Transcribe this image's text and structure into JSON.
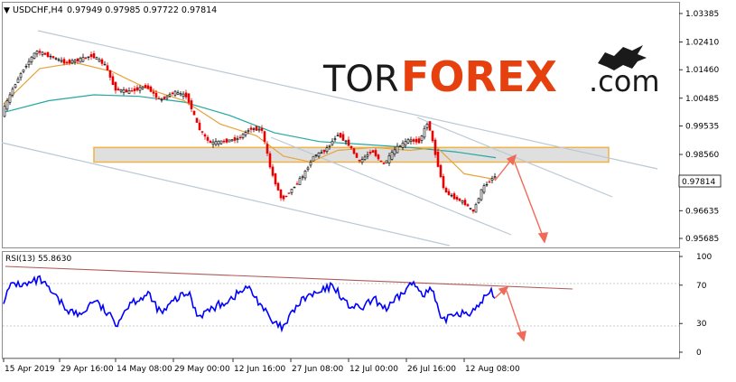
{
  "header": {
    "title": "USDCHF,H4",
    "ohlc": "0.97949 0.97985 0.97722 0.97814"
  },
  "logo": {
    "part1": "TOR",
    "part2": "FOREX",
    "part3": ".com"
  },
  "rsi": {
    "label": "RSI(13) 55.8630"
  },
  "colors": {
    "bull": "#000000",
    "bear": "#e60000",
    "ma_fast": "#e8a23a",
    "ma_slow": "#22a8a0",
    "channel": "#b9c9d6",
    "zone_fill": "#d9d9d9",
    "zone_border": "#f0b347",
    "arrow": "#f06a5a",
    "rsi_line": "#0000ff",
    "rsi_trend": "#b05a5a",
    "logo_dark": "#1a1a1a",
    "logo_accent": "#e6400f"
  },
  "chart_data": {
    "type": "candlestick",
    "symbol": "USDCHF",
    "timeframe": "H4",
    "ohlc_last": {
      "open": 0.97949,
      "high": 0.97985,
      "low": 0.97722,
      "close": 0.97814
    },
    "price_axis": {
      "ticks": [
        "1.03385",
        "1.02410",
        "1.01460",
        "1.00485",
        "0.99535",
        "0.98560",
        "0.97610",
        "0.96635",
        "0.95685"
      ],
      "ylim": [
        0.955,
        1.036
      ],
      "current_price": "0.97814"
    },
    "time_axis": {
      "ticks": [
        "15 Apr 2019",
        "29 Apr 16:00",
        "14 May 08:00",
        "29 May 00:00",
        "12 Jun 16:00",
        "27 Jun 08:00",
        "12 Jul 00:00",
        "26 Jul 16:00",
        "12 Aug 08:00"
      ]
    },
    "price_path": [
      [
        0,
        0.9995
      ],
      [
        12,
        1.008
      ],
      [
        22,
        1.014
      ],
      [
        38,
        1.021
      ],
      [
        55,
        1.019
      ],
      [
        70,
        1.017
      ],
      [
        85,
        1.018
      ],
      [
        100,
        1.0195
      ],
      [
        115,
        1.016
      ],
      [
        125,
        1.008
      ],
      [
        140,
        1.007
      ],
      [
        160,
        1.009
      ],
      [
        175,
        1.004
      ],
      [
        190,
        1.007
      ],
      [
        205,
        1.0055
      ],
      [
        218,
        0.9945
      ],
      [
        230,
        0.9895
      ],
      [
        245,
        0.99
      ],
      [
        262,
        0.991
      ],
      [
        275,
        0.9945
      ],
      [
        288,
        0.994
      ],
      [
        298,
        0.98
      ],
      [
        310,
        0.97
      ],
      [
        322,
        0.974
      ],
      [
        335,
        0.979
      ],
      [
        345,
        0.985
      ],
      [
        358,
        0.987
      ],
      [
        372,
        0.9925
      ],
      [
        384,
        0.989
      ],
      [
        396,
        0.983
      ],
      [
        410,
        0.987
      ],
      [
        422,
        0.982
      ],
      [
        436,
        0.9875
      ],
      [
        450,
        0.9905
      ],
      [
        462,
        0.99
      ],
      [
        472,
        0.997
      ],
      [
        482,
        0.983
      ],
      [
        490,
        0.973
      ],
      [
        500,
        0.971
      ],
      [
        512,
        0.969
      ],
      [
        522,
        0.966
      ],
      [
        532,
        0.974
      ],
      [
        545,
        0.9781
      ]
    ],
    "ma_fast_path": [
      [
        0,
        1.003
      ],
      [
        40,
        1.015
      ],
      [
        80,
        1.017
      ],
      [
        120,
        1.014
      ],
      [
        160,
        1.008
      ],
      [
        200,
        1.004
      ],
      [
        240,
        0.996
      ],
      [
        280,
        0.992
      ],
      [
        310,
        0.985
      ],
      [
        340,
        0.983
      ],
      [
        370,
        0.987
      ],
      [
        410,
        0.988
      ],
      [
        450,
        0.987
      ],
      [
        480,
        0.988
      ],
      [
        510,
        0.979
      ],
      [
        545,
        0.977
      ]
    ],
    "ma_slow_path": [
      [
        0,
        1.0
      ],
      [
        50,
        1.004
      ],
      [
        100,
        1.006
      ],
      [
        150,
        1.0055
      ],
      [
        200,
        1.0035
      ],
      [
        250,
        0.999
      ],
      [
        300,
        0.993
      ],
      [
        350,
        0.99
      ],
      [
        400,
        0.989
      ],
      [
        450,
        0.988
      ],
      [
        500,
        0.9865
      ],
      [
        545,
        0.9845
      ]
    ],
    "resistance_zone": {
      "from": 0.983,
      "to": 0.988
    },
    "rsi": {
      "period": 13,
      "value": 55.863,
      "ticks": [
        "100",
        "70",
        "30",
        "0"
      ],
      "path": [
        [
          0,
          55
        ],
        [
          10,
          72
        ],
        [
          25,
          70
        ],
        [
          40,
          76
        ],
        [
          55,
          60
        ],
        [
          70,
          45
        ],
        [
          85,
          38
        ],
        [
          100,
          55
        ],
        [
          115,
          40
        ],
        [
          125,
          30
        ],
        [
          140,
          52
        ],
        [
          160,
          60
        ],
        [
          175,
          40
        ],
        [
          190,
          55
        ],
        [
          205,
          62
        ],
        [
          215,
          38
        ],
        [
          230,
          45
        ],
        [
          250,
          55
        ],
        [
          270,
          68
        ],
        [
          285,
          50
        ],
        [
          298,
          30
        ],
        [
          310,
          25
        ],
        [
          322,
          45
        ],
        [
          335,
          58
        ],
        [
          350,
          62
        ],
        [
          365,
          70
        ],
        [
          380,
          50
        ],
        [
          395,
          45
        ],
        [
          410,
          55
        ],
        [
          425,
          45
        ],
        [
          440,
          60
        ],
        [
          452,
          72
        ],
        [
          465,
          62
        ],
        [
          475,
          65
        ],
        [
          485,
          30
        ],
        [
          495,
          40
        ],
        [
          510,
          42
        ],
        [
          522,
          42
        ],
        [
          530,
          55
        ],
        [
          540,
          63
        ],
        [
          545,
          58
        ]
      ]
    }
  }
}
